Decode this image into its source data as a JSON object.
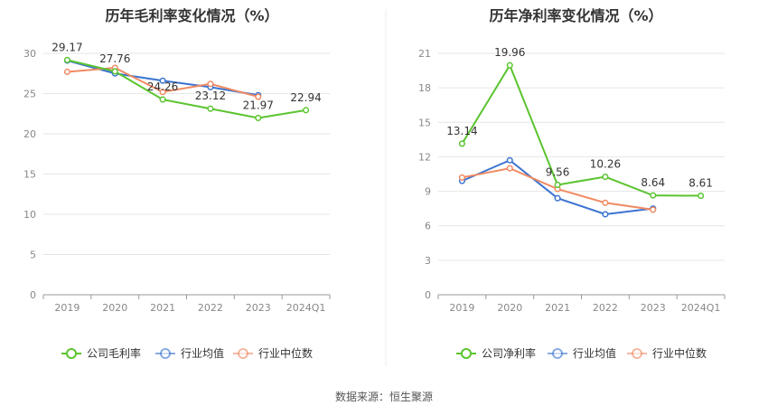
{
  "source": "数据来源：恒生聚源",
  "colors": {
    "company": "#5ac42f",
    "industry_avg": "#3b74d0",
    "industry_median": "#f08a63",
    "grid": "#e6e6e6",
    "axis": "#999999"
  },
  "chart_data": [
    {
      "type": "line",
      "title": "历年毛利率变化情况（%）",
      "categories": [
        "2019",
        "2020",
        "2021",
        "2022",
        "2023",
        "2024Q1"
      ],
      "ylim": [
        0,
        30
      ],
      "yticks": [
        0,
        5,
        10,
        15,
        20,
        25,
        30
      ],
      "grid": true,
      "legend_position": "bottom",
      "series": [
        {
          "name": "公司毛利率",
          "key": "company",
          "values": [
            29.17,
            27.76,
            24.26,
            23.12,
            21.97,
            22.94
          ],
          "labels": [
            "29.17",
            "27.76",
            "24.26",
            "23.12",
            "21.97",
            "22.94"
          ]
        },
        {
          "name": "行业均值",
          "key": "industry_avg",
          "values": [
            29.1,
            27.5,
            26.6,
            25.8,
            24.8,
            null
          ]
        },
        {
          "name": "行业中位数",
          "key": "industry_median",
          "values": [
            27.7,
            28.2,
            25.2,
            26.2,
            24.6,
            null
          ]
        }
      ]
    },
    {
      "type": "line",
      "title": "历年净利率变化情况（%）",
      "categories": [
        "2019",
        "2020",
        "2021",
        "2022",
        "2023",
        "2024Q1"
      ],
      "ylim": [
        0,
        21
      ],
      "yticks": [
        0,
        3,
        6,
        9,
        12,
        15,
        18,
        21
      ],
      "grid": true,
      "legend_position": "bottom",
      "series": [
        {
          "name": "公司净利率",
          "key": "company",
          "values": [
            13.14,
            19.96,
            9.56,
            10.26,
            8.64,
            8.61
          ],
          "labels": [
            "13.14",
            "19.96",
            "9.56",
            "10.26",
            "8.64",
            "8.61"
          ]
        },
        {
          "name": "行业均值",
          "key": "industry_avg",
          "values": [
            9.9,
            11.7,
            8.4,
            7.0,
            7.5,
            null
          ]
        },
        {
          "name": "行业中位数",
          "key": "industry_median",
          "values": [
            10.2,
            11.0,
            9.2,
            8.0,
            7.4,
            null
          ]
        }
      ]
    }
  ]
}
